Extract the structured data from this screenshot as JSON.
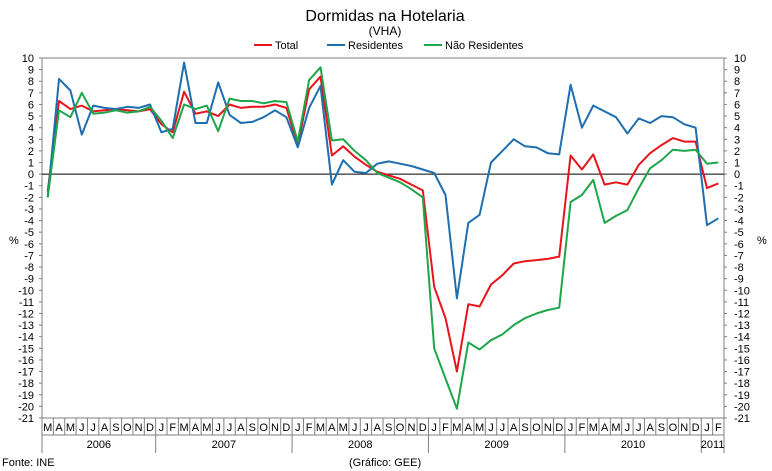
{
  "chart_data": {
    "type": "line",
    "title": "Dormidas na Hotelaria",
    "subtitle": "(VHA)",
    "ylabel_left": "%",
    "ylabel_right": "%",
    "ylim": [
      -21,
      10
    ],
    "yticks": [
      10,
      9,
      8,
      7,
      6,
      5,
      4,
      3,
      2,
      1,
      0,
      -1,
      -2,
      -3,
      -4,
      -5,
      -6,
      -7,
      -8,
      -9,
      -10,
      -11,
      -12,
      -13,
      -14,
      -15,
      -16,
      -17,
      -18,
      -19,
      -20,
      -21
    ],
    "months": [
      "M",
      "A",
      "M",
      "J",
      "J",
      "A",
      "S",
      "O",
      "N",
      "D",
      "J",
      "F",
      "M",
      "A",
      "M",
      "J",
      "J",
      "A",
      "S",
      "O",
      "N",
      "D",
      "J",
      "F",
      "M",
      "A",
      "M",
      "J",
      "J",
      "A",
      "S",
      "O",
      "N",
      "D",
      "J",
      "F",
      "M",
      "A",
      "M",
      "J",
      "J",
      "A",
      "S",
      "O",
      "N",
      "D",
      "J",
      "F",
      "M",
      "A",
      "M",
      "J",
      "J",
      "A",
      "S",
      "O",
      "N",
      "D",
      "J",
      "F"
    ],
    "years": [
      {
        "label": "2006",
        "start": 0,
        "end": 9
      },
      {
        "label": "2007",
        "start": 10,
        "end": 21
      },
      {
        "label": "2008",
        "start": 22,
        "end": 33
      },
      {
        "label": "2009",
        "start": 34,
        "end": 45
      },
      {
        "label": "2010",
        "start": 46,
        "end": 57
      },
      {
        "label": "2011",
        "start": 58,
        "end": 59
      }
    ],
    "legend_position": "top",
    "series": [
      {
        "name": "Total",
        "color": "#e8141c",
        "values": [
          -1.5,
          6.3,
          5.6,
          5.9,
          5.4,
          5.5,
          5.6,
          5.5,
          5.4,
          5.6,
          4.3,
          3.6,
          7.1,
          5.2,
          5.4,
          5.0,
          6.0,
          5.7,
          5.8,
          5.8,
          6.0,
          5.7,
          2.5,
          7.3,
          8.4,
          1.6,
          2.4,
          1.5,
          0.8,
          0.2,
          -0.1,
          -0.4,
          -0.9,
          -1.4,
          -9.7,
          -12.4,
          -17.0,
          -11.2,
          -11.4,
          -9.5,
          -8.7,
          -7.7,
          -7.5,
          -7.4,
          -7.3,
          -7.1,
          1.6,
          0.4,
          1.7,
          -0.9,
          -0.7,
          -0.9,
          0.8,
          1.8,
          2.5,
          3.1,
          2.8,
          2.8,
          -1.2,
          -0.8
        ]
      },
      {
        "name": "Residentes",
        "color": "#1f6eb0",
        "values": [
          -2.0,
          8.2,
          7.2,
          3.4,
          5.9,
          5.7,
          5.6,
          5.8,
          5.7,
          6.0,
          3.6,
          3.9,
          9.6,
          4.4,
          4.4,
          7.9,
          5.1,
          4.4,
          4.5,
          4.9,
          5.5,
          4.9,
          2.3,
          5.7,
          7.6,
          -0.9,
          1.2,
          0.2,
          0.1,
          0.9,
          1.1,
          0.9,
          0.7,
          0.4,
          0.1,
          -1.8,
          -10.7,
          -4.2,
          -3.5,
          1.0,
          2.0,
          3.0,
          2.4,
          2.3,
          1.8,
          1.7,
          7.7,
          4.0,
          5.9,
          5.4,
          4.9,
          3.5,
          4.8,
          4.4,
          5.0,
          4.9,
          4.3,
          4.0,
          -4.4,
          -3.8
        ]
      },
      {
        "name": "Não Residentes",
        "color": "#1ea64a",
        "values": [
          -2.0,
          5.5,
          4.9,
          7.0,
          5.2,
          5.3,
          5.5,
          5.3,
          5.4,
          5.8,
          4.6,
          3.1,
          6.0,
          5.6,
          5.9,
          3.7,
          6.5,
          6.3,
          6.3,
          6.1,
          6.3,
          6.2,
          2.8,
          8.1,
          9.2,
          2.9,
          3.0,
          2.0,
          1.2,
          0.1,
          -0.3,
          -0.7,
          -1.3,
          -2.0,
          -15.0,
          -17.6,
          -20.2,
          -14.5,
          -15.1,
          -14.3,
          -13.8,
          -13.0,
          -12.4,
          -12.0,
          -11.7,
          -11.5,
          -2.4,
          -1.8,
          -0.5,
          -4.2,
          -3.6,
          -3.1,
          -1.2,
          0.5,
          1.2,
          2.1,
          2.0,
          2.1,
          0.9,
          1.0
        ]
      }
    ]
  },
  "footer": {
    "source": "Fonte: INE",
    "credit": "(Gráfico: GEE)"
  }
}
